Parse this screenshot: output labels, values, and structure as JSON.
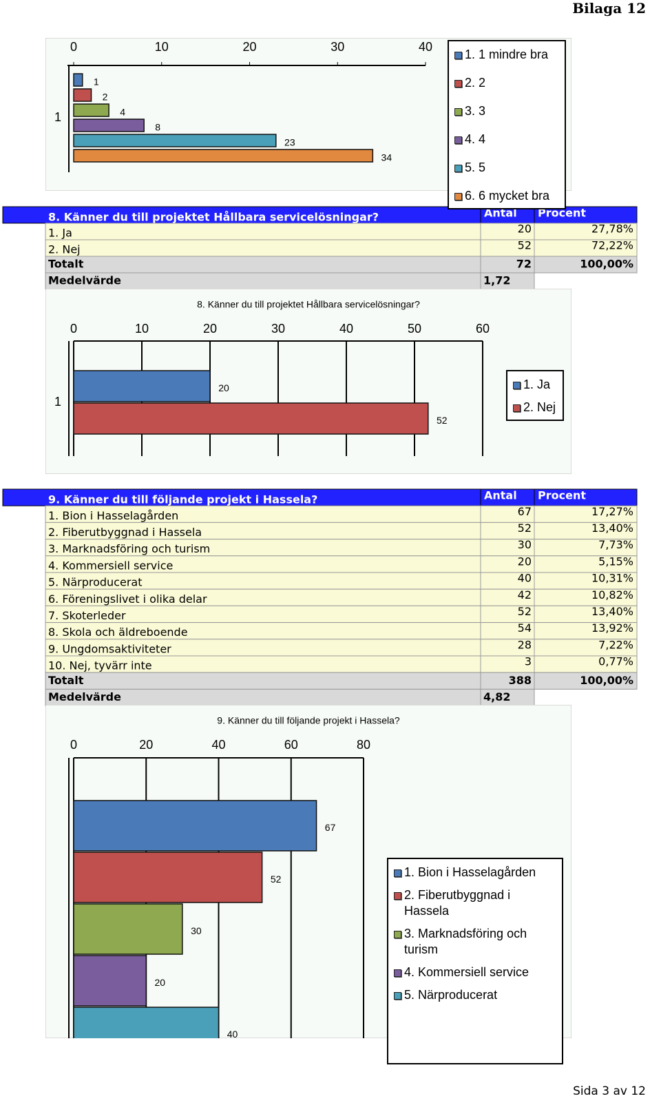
{
  "header": "Bilaga 12",
  "footer": "Sida 3 av 12",
  "chart_data": [
    {
      "type": "bar",
      "orientation": "horizontal",
      "categories": [
        "1"
      ],
      "series": [
        {
          "name": "1. 1 mindre bra",
          "color": "#4a7ab8",
          "values": [
            1
          ]
        },
        {
          "name": "2. 2",
          "color": "#c0504d",
          "values": [
            2
          ]
        },
        {
          "name": "3. 3",
          "color": "#8ea94f",
          "values": [
            4
          ]
        },
        {
          "name": "4. 4",
          "color": "#7a5d9c",
          "values": [
            8
          ]
        },
        {
          "name": "5. 5",
          "color": "#4aa0b8",
          "values": [
            23
          ]
        },
        {
          "name": "6. 6 mycket bra",
          "color": "#e0893f",
          "values": [
            34
          ]
        }
      ],
      "xlim": [
        0,
        40
      ],
      "xticks": [
        0,
        10,
        20,
        30,
        40
      ],
      "grid": false,
      "legend": "right"
    },
    {
      "type": "bar",
      "orientation": "horizontal",
      "title": "8. Känner du till projektet Hållbara servicelösningar?",
      "categories": [
        "1"
      ],
      "series": [
        {
          "name": "1. Ja",
          "color": "#4a7ab8",
          "values": [
            20
          ]
        },
        {
          "name": "2. Nej",
          "color": "#c0504d",
          "values": [
            52
          ]
        }
      ],
      "xlim": [
        0,
        60
      ],
      "xticks": [
        0,
        10,
        20,
        30,
        40,
        50,
        60
      ],
      "grid": true,
      "legend": "right"
    },
    {
      "type": "bar",
      "orientation": "horizontal",
      "title": "9. Känner du till följande projekt i Hassela?",
      "categories": [
        null
      ],
      "series": [
        {
          "name": "1. Bion i Hasselagården",
          "color": "#4a7ab8",
          "values": [
            67
          ]
        },
        {
          "name": "2. Fiberutbyggnad i Hassela",
          "color": "#c0504d",
          "values": [
            52
          ]
        },
        {
          "name": "3. Marknadsföring och turism",
          "color": "#8ea94f",
          "values": [
            30
          ]
        },
        {
          "name": "4. Kommersiell service",
          "color": "#7a5d9c",
          "values": [
            20
          ]
        },
        {
          "name": "5. Närproducerat",
          "color": "#4aa0b8",
          "values": [
            40
          ]
        }
      ],
      "xlim": [
        0,
        80
      ],
      "xticks": [
        0,
        20,
        40,
        60,
        80
      ],
      "grid": true,
      "legend": "right"
    }
  ],
  "tables": [
    {
      "title": "8. Känner du till projektet Hållbara servicelösningar?",
      "columns": [
        "Antal",
        "Procent"
      ],
      "rows": [
        [
          "1. Ja",
          "20",
          "27,78%"
        ],
        [
          "2. Nej",
          "52",
          "72,22%"
        ]
      ],
      "total": [
        "Totalt",
        "72",
        "100,00%"
      ],
      "mean": [
        "Medelvärde",
        "1,72"
      ]
    },
    {
      "title": "9. Känner du till följande projekt i Hassela?",
      "columns": [
        "Antal",
        "Procent"
      ],
      "rows": [
        [
          "1. Bion i Hasselagården",
          "67",
          "17,27%"
        ],
        [
          "2. Fiberutbyggnad i Hassela",
          "52",
          "13,40%"
        ],
        [
          "3. Marknadsföring och turism",
          "30",
          "7,73%"
        ],
        [
          "4. Kommersiell service",
          "20",
          "5,15%"
        ],
        [
          "5. Närproducerat",
          "40",
          "10,31%"
        ],
        [
          "6. Föreningslivet i olika delar",
          "42",
          "10,82%"
        ],
        [
          "7. Skoterleder",
          "52",
          "13,40%"
        ],
        [
          "8. Skola och äldreboende",
          "54",
          "13,92%"
        ],
        [
          "9. Ungdomsaktiviteter",
          "28",
          "7,22%"
        ],
        [
          "10. Nej, tyvärr inte",
          "3",
          "0,77%"
        ]
      ],
      "total": [
        "Totalt",
        "388",
        "100,00%"
      ],
      "mean": [
        "Medelvärde",
        "4,82"
      ]
    }
  ]
}
